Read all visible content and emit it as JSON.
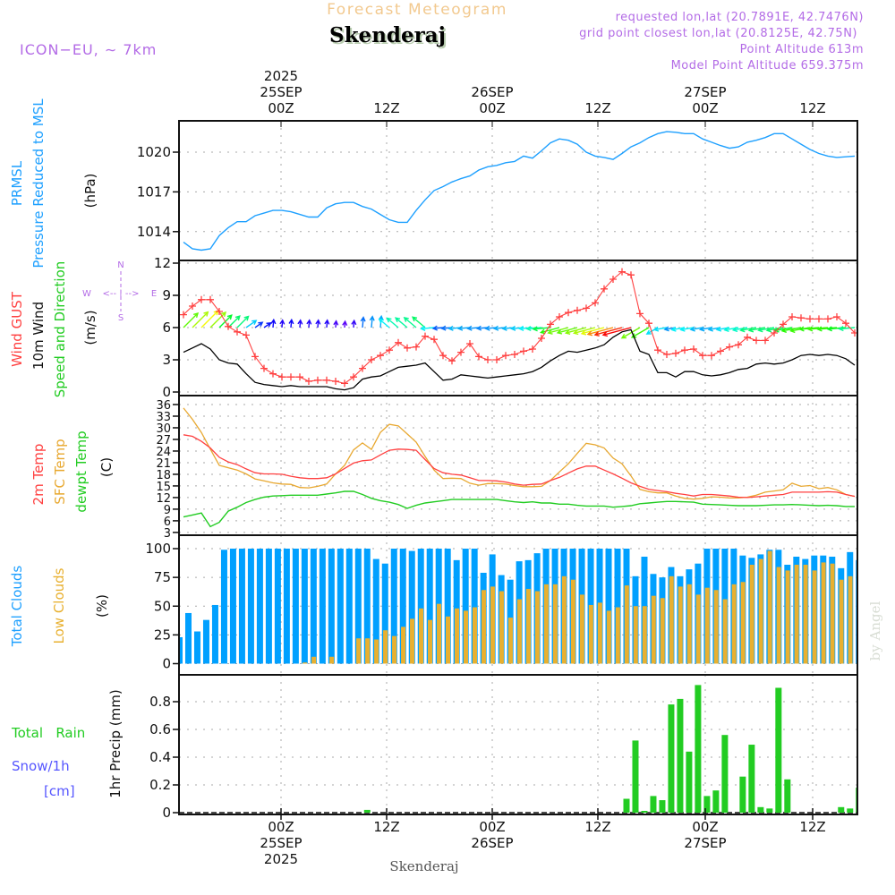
{
  "header": {
    "title": "Forecast Meteogram",
    "location": "Skenderaj",
    "model": "ICON−EU, ∼ 7km",
    "requested": "requested lon,lat (20.7891E, 42.7476N)",
    "grid_point": "grid point closest lon,lat (20.8125E, 42.75N)",
    "point_altitude": "Point Altitude 613m",
    "model_altitude": "Model Point Altitude 659.375m",
    "footer_location": "Skenderaj",
    "watermark": "by Angel"
  },
  "time_axis": {
    "top": [
      {
        "hour": "00Z",
        "date": "25SEP",
        "year": "2025"
      },
      {
        "hour": "12Z"
      },
      {
        "hour": "00Z",
        "date": "26SEP"
      },
      {
        "hour": "12Z"
      },
      {
        "hour": "00Z",
        "date": "27SEP"
      },
      {
        "hour": "12Z"
      }
    ],
    "bottom": [
      {
        "hour": "00Z",
        "date": "25SEP",
        "year": "2025"
      },
      {
        "hour": "12Z"
      },
      {
        "hour": "00Z",
        "date": "26SEP"
      },
      {
        "hour": "12Z"
      },
      {
        "hour": "00Z",
        "date": "27SEP"
      },
      {
        "hour": "12Z"
      }
    ]
  },
  "labels": {
    "prmsl": "PRMSL",
    "pressure": "Pressure Reduced to MSL",
    "hpa": "(hPa)",
    "gust": "Wind GUST",
    "wind10": "10m Wind",
    "speed_dir": "Speed and Direction",
    "ms": "(m/s)",
    "compass_n": "N",
    "compass_s": "S",
    "compass_w": "W",
    "compass_e": "E",
    "compass_h": "<-- | -->",
    "t2m": "2m Temp",
    "tsfc": "SFC Temp",
    "tdew": "dewpt Temp",
    "celsius": "(C)",
    "total_clouds": "Total Clouds",
    "low_clouds": "Low Clouds",
    "percent": "(%)",
    "total_rain": "Total   Rain",
    "snow": "Snow/1h",
    "cm": "[cm]",
    "precip": "1hr Precip (mm)"
  },
  "colors": {
    "pressure": "#1ea0ff",
    "gust": "#ff4040",
    "wind": "#000000",
    "t2m": "#ff4040",
    "tsfc": "#e8a830",
    "tdew": "#22cc22",
    "total_clouds": "#00a0ff",
    "low_clouds": "#e8b030",
    "rain": "#22cc22",
    "snow": "#5555ff",
    "info": "#b36be6"
  },
  "chart_data": [
    {
      "type": "line",
      "title": "PRMSL Pressure Reduced to MSL",
      "ylabel": "(hPa)",
      "yticks": [
        "1020",
        "1017",
        "1014"
      ],
      "ylim": [
        1011.7,
        1022.2
      ],
      "series": [
        {
          "name": "PRMSL",
          "values": [
            1013.2,
            1012.7,
            1012.6,
            1012.7,
            1013.7,
            1014.3,
            1014.75,
            1014.75,
            1015.2,
            1015.4,
            1015.6,
            1015.6,
            1015.5,
            1015.3,
            1015.1,
            1015.1,
            1015.8,
            1016.1,
            1016.2,
            1016.2,
            1015.9,
            1015.7,
            1015.3,
            1014.9,
            1014.7,
            1014.7,
            1015.6,
            1016.4,
            1017.1,
            1017.4,
            1017.75,
            1018.0,
            1018.2,
            1018.65,
            1018.9,
            1019.0,
            1019.2,
            1019.3,
            1019.7,
            1019.55,
            1020.1,
            1020.7,
            1021.0,
            1020.9,
            1020.6,
            1020.0,
            1019.7,
            1019.6,
            1019.45,
            1019.9,
            1020.4,
            1020.7,
            1021.1,
            1021.4,
            1021.55,
            1021.5,
            1021.4,
            1021.4,
            1021.0,
            1020.75,
            1020.5,
            1020.3,
            1020.4,
            1020.75,
            1020.9,
            1021.1,
            1021.4,
            1021.4,
            1021.0,
            1020.6,
            1020.2,
            1019.9,
            1019.7,
            1019.6,
            1019.65,
            1019.7
          ]
        }
      ]
    },
    {
      "type": "line",
      "title": "Wind GUST / 10m Wind Speed and Direction",
      "ylabel": "(m/s)",
      "yticks": [
        "12",
        "9",
        "6",
        "3",
        "0"
      ],
      "ylim": [
        0,
        12
      ],
      "series": [
        {
          "name": "Wind GUST",
          "values": [
            7.2,
            8.0,
            8.6,
            8.6,
            7.5,
            6.1,
            5.6,
            5.3,
            3.3,
            2.2,
            1.7,
            1.4,
            1.4,
            1.4,
            1.0,
            1.1,
            1.1,
            1.0,
            0.8,
            1.4,
            2.2,
            3.0,
            3.4,
            3.9,
            4.6,
            4.1,
            4.2,
            5.2,
            4.9,
            3.4,
            2.9,
            3.7,
            4.5,
            3.3,
            3.0,
            3.0,
            3.4,
            3.5,
            3.8,
            4.0,
            5.0,
            6.3,
            7.0,
            7.4,
            7.6,
            7.8,
            8.3,
            9.6,
            10.5,
            11.2,
            10.9,
            7.3,
            6.4,
            3.9,
            3.5,
            3.6,
            3.9,
            4.0,
            3.4,
            3.4,
            3.8,
            4.2,
            4.4,
            5.1,
            4.8,
            4.8,
            5.5,
            6.3,
            7.0,
            6.9,
            6.8,
            6.8,
            6.8,
            7.0,
            6.4,
            5.5
          ]
        },
        {
          "name": "10m Wind",
          "values": [
            3.7,
            4.1,
            4.5,
            4.0,
            3.0,
            2.7,
            2.6,
            1.7,
            0.9,
            0.7,
            0.6,
            0.5,
            0.6,
            0.5,
            0.5,
            0.5,
            0.5,
            0.3,
            0.2,
            0.4,
            1.2,
            1.4,
            1.5,
            1.9,
            2.3,
            2.4,
            2.5,
            2.7,
            1.9,
            1.1,
            1.2,
            1.6,
            1.5,
            1.4,
            1.3,
            1.4,
            1.5,
            1.6,
            1.7,
            1.9,
            2.3,
            2.9,
            3.4,
            3.8,
            3.7,
            3.9,
            4.1,
            4.4,
            5.1,
            5.6,
            5.8,
            3.8,
            3.5,
            1.8,
            1.8,
            1.4,
            1.9,
            1.9,
            1.6,
            1.5,
            1.6,
            1.8,
            2.1,
            2.2,
            2.6,
            2.7,
            2.6,
            2.7,
            3.0,
            3.4,
            3.5,
            3.4,
            3.5,
            3.4,
            3.1,
            2.5
          ]
        }
      ],
      "wind_direction_from_deg": [
        225,
        225,
        225,
        225,
        225,
        225,
        225,
        235,
        235,
        235,
        185,
        185,
        185,
        185,
        185,
        185,
        185,
        185,
        185,
        185,
        185,
        185,
        185,
        130,
        130,
        130,
        130,
        130,
        85,
        85,
        85,
        85,
        85,
        85,
        85,
        85,
        85,
        85,
        85,
        85,
        85,
        85,
        75,
        75,
        75,
        75,
        75,
        75,
        75,
        75,
        75,
        60,
        60,
        60,
        80,
        80,
        80,
        80,
        80,
        80,
        80,
        80,
        80,
        80,
        80,
        80,
        80,
        80,
        80,
        80,
        80,
        85,
        85,
        85,
        85,
        85
      ]
    },
    {
      "type": "line",
      "title": "2m Temp / SFC Temp / dewpt Temp",
      "ylabel": "(C)",
      "yticks": [
        "36",
        "33",
        "30",
        "27",
        "24",
        "21",
        "18",
        "15",
        "12",
        "9",
        "6",
        "3"
      ],
      "ylim": [
        3,
        36
      ],
      "series": [
        {
          "name": "2m Temp",
          "values": [
            28.2,
            27.8,
            26.5,
            24.8,
            22.4,
            21.2,
            20.5,
            19.4,
            18.4,
            18.1,
            18.1,
            18.0,
            17.5,
            17.1,
            16.9,
            16.9,
            17.1,
            18.1,
            19.5,
            20.9,
            21.5,
            21.7,
            23.0,
            24.2,
            24.5,
            24.4,
            24.2,
            21.8,
            19.5,
            18.4,
            18.0,
            17.8,
            17.1,
            16.4,
            16.4,
            16.3,
            16.0,
            15.5,
            15.2,
            15.4,
            15.5,
            16.4,
            17.2,
            18.3,
            19.4,
            20.1,
            20.1,
            19.1,
            18.1,
            17.0,
            15.8,
            14.9,
            14.1,
            13.8,
            13.5,
            13.1,
            12.8,
            12.4,
            12.8,
            12.8,
            12.6,
            12.4,
            12.1,
            12.0,
            12.2,
            12.4,
            12.6,
            12.8,
            13.4,
            13.4,
            13.4,
            13.4,
            13.5,
            13.4,
            12.8,
            12.3
          ]
        },
        {
          "name": "SFC Temp",
          "values": [
            35.1,
            32.2,
            28.8,
            24.5,
            20.3,
            19.7,
            19.1,
            18.1,
            16.8,
            16.3,
            15.8,
            15.5,
            15.4,
            14.6,
            14.5,
            14.9,
            15.5,
            18.1,
            20.3,
            24.3,
            26.1,
            24.4,
            28.8,
            30.9,
            30.5,
            28.4,
            26.3,
            22.6,
            19.1,
            16.9,
            17.0,
            16.9,
            15.7,
            15.2,
            15.6,
            15.6,
            15.5,
            15.1,
            14.8,
            14.8,
            14.9,
            16.4,
            18.6,
            20.7,
            23.4,
            26.0,
            25.6,
            24.8,
            22.2,
            20.7,
            17.6,
            14.1,
            13.5,
            13.2,
            13.2,
            12.4,
            11.8,
            11.6,
            11.8,
            12.2,
            12.1,
            11.9,
            11.9,
            12.1,
            12.6,
            13.4,
            13.7,
            14.0,
            15.7,
            14.9,
            15.1,
            14.3,
            14.6,
            14.0,
            12.8,
            12.3
          ]
        },
        {
          "name": "dewpt Temp",
          "values": [
            7.0,
            7.5,
            8.0,
            4.5,
            5.6,
            8.5,
            9.5,
            10.7,
            11.5,
            12.1,
            12.4,
            12.5,
            12.6,
            12.6,
            12.6,
            12.6,
            12.9,
            13.2,
            13.6,
            13.6,
            12.8,
            11.8,
            11.2,
            10.8,
            10.2,
            9.2,
            10.0,
            10.6,
            10.9,
            11.2,
            11.5,
            11.5,
            11.5,
            11.5,
            11.5,
            11.5,
            11.2,
            10.9,
            10.7,
            10.9,
            10.6,
            10.6,
            10.3,
            10.3,
            10.0,
            9.8,
            9.8,
            9.8,
            9.5,
            9.7,
            9.9,
            10.4,
            10.6,
            10.8,
            11.0,
            11.0,
            10.9,
            10.8,
            10.3,
            10.2,
            10.1,
            10.0,
            9.9,
            9.9,
            9.9,
            10.0,
            10.1,
            10.1,
            10.2,
            10.1,
            10.0,
            9.9,
            10.0,
            9.9,
            9.7,
            9.7
          ]
        }
      ]
    },
    {
      "type": "bar",
      "title": "Total Clouds / Low Clouds",
      "ylabel": "(%)",
      "yticks": [
        "100",
        "75",
        "50",
        "25",
        "0"
      ],
      "ylim": [
        0,
        100
      ],
      "series": [
        {
          "name": "Total Clouds",
          "values": [
            23,
            44,
            28,
            38,
            51,
            99,
            100,
            100,
            100,
            100,
            100,
            100,
            100,
            100,
            100,
            100,
            100,
            100,
            100,
            100,
            100,
            100,
            91,
            87,
            100,
            100,
            98,
            100,
            100,
            100,
            100,
            90,
            100,
            100,
            79,
            95,
            77,
            73,
            89,
            90,
            96,
            100,
            100,
            100,
            100,
            100,
            100,
            100,
            100,
            100,
            100,
            76,
            93,
            78,
            75,
            84,
            76,
            82,
            87,
            100,
            100,
            100,
            100,
            94,
            92,
            95,
            99,
            99,
            86,
            93,
            91,
            94,
            94,
            93,
            83,
            97,
            90
          ]
        },
        {
          "name": "Low Clouds",
          "values": [
            0,
            0,
            0,
            0,
            0,
            0,
            0,
            0,
            0,
            0,
            0,
            0,
            0,
            0,
            1,
            6,
            0,
            6,
            0,
            0,
            22,
            22,
            21,
            29,
            24,
            32,
            39,
            48,
            38,
            52,
            41,
            48,
            46,
            49,
            64,
            67,
            63,
            40,
            56,
            65,
            63,
            69,
            69,
            76,
            73,
            60,
            51,
            53,
            46,
            49,
            68,
            50,
            50,
            59,
            57,
            76,
            67,
            69,
            60,
            66,
            64,
            56,
            69,
            71,
            86,
            91,
            98,
            84,
            81,
            86,
            86,
            81,
            88,
            87,
            73,
            76,
            85
          ]
        }
      ]
    },
    {
      "type": "bar",
      "title": "1hr Precip",
      "ylabel": "1hr Precip (mm)",
      "yticks": [
        "0.8",
        "0.6",
        "0.4",
        "0.2",
        "0"
      ],
      "ylim": [
        0,
        0.98
      ],
      "series": [
        {
          "name": "Total Rain",
          "values": [
            0,
            0,
            0,
            0,
            0,
            0,
            0,
            0,
            0,
            0,
            0,
            0,
            0,
            0,
            0,
            0,
            0,
            0,
            0,
            0,
            0,
            0.02,
            0,
            0,
            0,
            0,
            0,
            0,
            0,
            0,
            0,
            0,
            0,
            0,
            0,
            0,
            0,
            0,
            0,
            0,
            0,
            0,
            0,
            0,
            0,
            0,
            0,
            0,
            0,
            0,
            0.1,
            0.52,
            0.01,
            0.12,
            0.09,
            0.78,
            0.82,
            0.44,
            0.92,
            0.12,
            0.16,
            0.56,
            0,
            0.26,
            0.49,
            0.04,
            0.03,
            0.9,
            0.24,
            0,
            0,
            0,
            0,
            0,
            0.04,
            0.03,
            0.18
          ]
        }
      ]
    }
  ]
}
